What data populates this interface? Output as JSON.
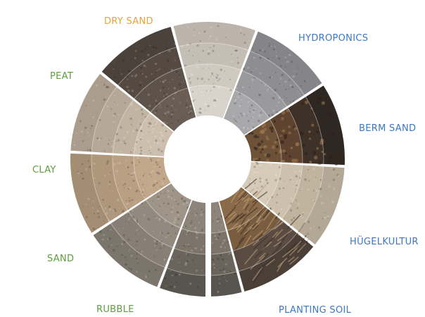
{
  "wheel": {
    "segments": [
      {
        "label": "DRY SAND",
        "label_color": "#e8a33a",
        "colors": [
          "#d8d4cc",
          "#cfc9c0",
          "#c5beb4",
          "#bcb4aa"
        ],
        "texture": "speckle"
      },
      {
        "label": "",
        "label_color": "#e8a33a",
        "colors": [
          "#a8a8aa",
          "#9a9a9d",
          "#8e8e92",
          "#858589"
        ],
        "texture": "speckle"
      },
      {
        "label": "HYDROPONICS",
        "label_color": "#3b78c4",
        "colors": [
          "#6e5238",
          "#5e4430",
          "#3e3128",
          "#2f2722"
        ],
        "texture": "chips"
      },
      {
        "label": "BERM SAND",
        "label_color": "#3b78c4",
        "colors": [
          "#d6cbb8",
          "#cdc1ad",
          "#c0b49f",
          "#b3a895"
        ],
        "texture": "speckle"
      },
      {
        "label": "HÜGELKULTUR",
        "label_color": "#3b78c4",
        "colors": [
          "#8a6a48",
          "#7a5c3e",
          "#5a4c42",
          "#4a4038"
        ],
        "texture": "sticks"
      },
      {
        "label": "PLANTING SOIL",
        "label_color": "#3b78c4",
        "colors": [
          "#8c8478",
          "#7c7468",
          "#6a645c",
          "#58544e"
        ],
        "texture": "speckle"
      },
      {
        "label": "RUBBLE",
        "label_color": "#5e9e3c",
        "colors": [
          "#9e9488",
          "#928a7e",
          "#877f75",
          "#7c756c"
        ],
        "texture": "speckle"
      },
      {
        "label": "SAND",
        "label_color": "#5e9e3c",
        "colors": [
          "#c2a88a",
          "#b9a083",
          "#ae977b",
          "#a38e74"
        ],
        "texture": "speckle"
      },
      {
        "label": "CLAY",
        "label_color": "#5e9e3c",
        "colors": [
          "#cdbfae",
          "#c2b4a3",
          "#b6a898",
          "#aa9d8d"
        ],
        "texture": "speckle"
      },
      {
        "label": "PEAT",
        "label_color": "#5e9e3c",
        "colors": [
          "#6a5e54",
          "#5e534a",
          "#544a42",
          "#4a423b"
        ],
        "texture": "speckle"
      }
    ]
  }
}
